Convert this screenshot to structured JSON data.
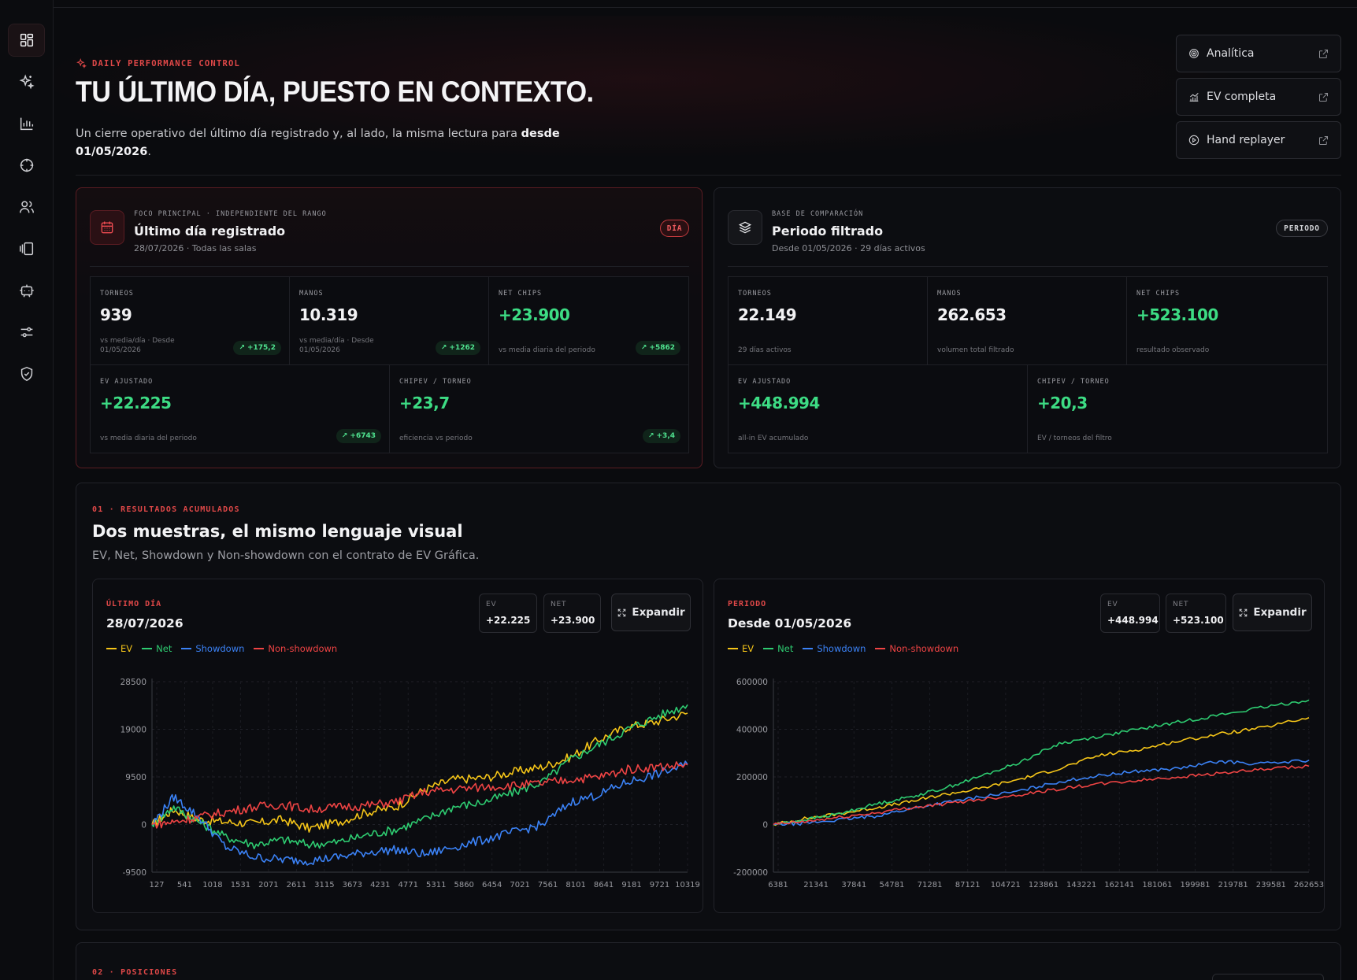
{
  "sidebar": {
    "items": [
      {
        "icon": "dashboard-icon",
        "active": true
      },
      {
        "icon": "sparkles-icon"
      },
      {
        "icon": "bar-chart-icon"
      },
      {
        "icon": "crosshair-icon"
      },
      {
        "icon": "users-icon"
      },
      {
        "icon": "cards-icon"
      },
      {
        "icon": "bot-icon"
      },
      {
        "icon": "sliders-icon"
      },
      {
        "icon": "shield-icon"
      }
    ]
  },
  "hero": {
    "eyebrow": "DAILY PERFORMANCE CONTROL",
    "title": "TU ÚLTIMO DÍA, PUESTO EN CONTEXTO.",
    "desc_prefix": "Un cierre operativo del último día registrado y, al lado, la misma lectura para ",
    "desc_bold": "desde 01/05/2026",
    "desc_suffix": "."
  },
  "actions": [
    {
      "label": "Analítica",
      "icon": "target-icon"
    },
    {
      "label": "EV completa",
      "icon": "trend-icon"
    },
    {
      "label": "Hand replayer",
      "icon": "play-icon"
    }
  ],
  "day_card": {
    "kicker": "FOCO PRINCIPAL · INDEPENDIENTE DEL RANGO",
    "title": "Último día registrado",
    "sub": "28/07/2026 · Todas las salas",
    "badge": "DÍA",
    "metrics": [
      {
        "label": "TORNEOS",
        "value": "939",
        "note": "vs media/día · Desde 01/05/2026",
        "delta": "+175,2"
      },
      {
        "label": "MANOS",
        "value": "10.319",
        "note": "vs media/día · Desde 01/05/2026",
        "delta": "+1262"
      },
      {
        "label": "NET CHIPS",
        "value": "+23.900",
        "note": "vs media diaria del periodo",
        "delta": "+5862"
      },
      {
        "label": "EV AJUSTADO",
        "value": "+22.225",
        "note": "vs media diaria del periodo",
        "delta": "+6743"
      },
      {
        "label": "CHIPEV / TORNEO",
        "value": "+23,7",
        "note": "eficiencia vs periodo",
        "delta": "+3,4"
      }
    ]
  },
  "period_card": {
    "kicker": "BASE DE COMPARACIÓN",
    "title": "Periodo filtrado",
    "sub": "Desde 01/05/2026 · 29 días activos",
    "badge": "PERIODO",
    "metrics": [
      {
        "label": "TORNEOS",
        "value": "22.149",
        "note": "29 días activos"
      },
      {
        "label": "MANOS",
        "value": "262.653",
        "note": "volumen total filtrado"
      },
      {
        "label": "NET CHIPS",
        "value": "+523.100",
        "note": "resultado observado"
      },
      {
        "label": "EV AJUSTADO",
        "value": "+448.994",
        "note": "all-in EV acumulado"
      },
      {
        "label": "CHIPEV / TORNEO",
        "value": "+20,3",
        "note": "EV / torneos del filtro"
      }
    ]
  },
  "section1": {
    "eyebrow": "01 · RESULTADOS ACUMULADOS",
    "title": "Dos muestras, el mismo lenguaje visual",
    "sub": "EV, Net, Showdown y Non-showdown con el contrato de EV Gráfica."
  },
  "section2": {
    "eyebrow": "02 · POSICIONES"
  },
  "legend": [
    "EV",
    "Net",
    "Showdown",
    "Non-showdown"
  ],
  "colors": {
    "ev": "#f5c518",
    "net": "#2ecc71",
    "showdown": "#3b82f6",
    "nonshowdown": "#ef4444",
    "accent": "#e04848"
  },
  "charts": [
    {
      "eyebrow": "ÚLTIMO DÍA",
      "title": "28/07/2026",
      "ev_label": "EV",
      "ev_value": "+22.225",
      "net_label": "NET",
      "net_value": "+23.900",
      "expand": "Expandir"
    },
    {
      "eyebrow": "PERIODO",
      "title": "Desde 01/05/2026",
      "ev_label": "EV",
      "ev_value": "+448.994",
      "net_label": "NET",
      "net_value": "+523.100",
      "expand": "Expandir"
    }
  ],
  "chart_data": [
    {
      "type": "line",
      "x_ticks": [
        "127",
        "541",
        "1018",
        "1531",
        "2071",
        "2611",
        "3115",
        "3673",
        "4231",
        "4771",
        "5311",
        "5860",
        "6454",
        "7021",
        "7561",
        "8101",
        "8641",
        "9181",
        "9721",
        "10319"
      ],
      "y_ticks": [
        "28500",
        "19000",
        "9500",
        "0",
        "-9500"
      ],
      "ylim": [
        -9500,
        28500
      ],
      "xlim": [
        127,
        10319
      ],
      "series": [
        {
          "name": "EV",
          "x": [
            127,
            541,
            1018,
            1531,
            2071,
            2611,
            3115,
            3673,
            4231,
            4771,
            5311,
            5860,
            6454,
            7021,
            7561,
            8101,
            8641,
            9181,
            9721,
            10319
          ],
          "values": [
            0,
            3000,
            1000,
            500,
            200,
            1000,
            -800,
            500,
            2500,
            3500,
            7000,
            9000,
            9300,
            10500,
            11500,
            13500,
            17000,
            19500,
            20500,
            22225
          ]
        },
        {
          "name": "Net",
          "x": [
            127,
            541,
            1018,
            1531,
            2071,
            2611,
            3115,
            3673,
            4231,
            4771,
            5311,
            5860,
            6454,
            7021,
            7561,
            8101,
            8641,
            9181,
            9721,
            10319
          ],
          "values": [
            0,
            3500,
            500,
            -2500,
            -4000,
            -3000,
            -4000,
            -3500,
            -2000,
            -1000,
            1000,
            3500,
            4500,
            6500,
            8500,
            13000,
            16000,
            19000,
            21500,
            23900
          ]
        },
        {
          "name": "Showdown",
          "x": [
            127,
            541,
            1018,
            1531,
            2071,
            2611,
            3115,
            3673,
            4231,
            4771,
            5311,
            5860,
            6454,
            7021,
            7561,
            8101,
            8641,
            9181,
            9721,
            10319
          ],
          "values": [
            0,
            5500,
            1500,
            -4500,
            -6500,
            -7000,
            -7200,
            -6500,
            -5500,
            -5000,
            -6000,
            -4500,
            -3000,
            -1500,
            0,
            4500,
            6000,
            8500,
            10000,
            12000
          ]
        },
        {
          "name": "Non-showdown",
          "x": [
            127,
            541,
            1018,
            1531,
            2071,
            2611,
            3115,
            3673,
            4231,
            4771,
            5311,
            5860,
            6454,
            7021,
            7561,
            8101,
            8641,
            9181,
            9721,
            10319
          ],
          "values": [
            0,
            500,
            1500,
            2500,
            3500,
            4000,
            3000,
            3500,
            3800,
            4500,
            6500,
            7000,
            7500,
            7800,
            8200,
            9000,
            9500,
            11000,
            11500,
            11900
          ]
        }
      ]
    },
    {
      "type": "line",
      "x_ticks": [
        "6381",
        "21341",
        "37841",
        "54781",
        "71281",
        "87121",
        "104721",
        "123861",
        "143221",
        "162141",
        "181061",
        "199981",
        "219781",
        "239581",
        "262653"
      ],
      "y_ticks": [
        "600000",
        "400000",
        "200000",
        "0",
        "-200000"
      ],
      "ylim": [
        -200000,
        600000
      ],
      "xlim": [
        6381,
        262653
      ],
      "series": [
        {
          "name": "EV",
          "x": [
            6381,
            21341,
            37841,
            54781,
            71281,
            87121,
            104721,
            123861,
            143221,
            162141,
            181061,
            199981,
            219781,
            239581,
            262653
          ],
          "values": [
            0,
            25000,
            45000,
            70000,
            95000,
            125000,
            150000,
            190000,
            235000,
            290000,
            315000,
            350000,
            380000,
            405000,
            448994
          ]
        },
        {
          "name": "Net",
          "x": [
            6381,
            21341,
            37841,
            54781,
            71281,
            87121,
            104721,
            123861,
            143221,
            162141,
            181061,
            199981,
            219781,
            239581,
            262653
          ],
          "values": [
            0,
            20000,
            45000,
            85000,
            115000,
            150000,
            200000,
            260000,
            340000,
            370000,
            400000,
            430000,
            460000,
            490000,
            523100
          ]
        },
        {
          "name": "Showdown",
          "x": [
            6381,
            21341,
            37841,
            54781,
            71281,
            87121,
            104721,
            123861,
            143221,
            162141,
            181061,
            199981,
            219781,
            239581,
            262653
          ],
          "values": [
            0,
            5000,
            20000,
            35000,
            65000,
            90000,
            115000,
            140000,
            180000,
            205000,
            225000,
            235000,
            265000,
            255000,
            270000
          ]
        },
        {
          "name": "Non-showdown",
          "x": [
            6381,
            21341,
            37841,
            54781,
            71281,
            87121,
            104721,
            123861,
            143221,
            162141,
            181061,
            199981,
            219781,
            239581,
            262653
          ],
          "values": [
            0,
            12000,
            30000,
            48000,
            70000,
            85000,
            105000,
            125000,
            150000,
            170000,
            185000,
            200000,
            215000,
            230000,
            245000
          ]
        }
      ]
    }
  ]
}
